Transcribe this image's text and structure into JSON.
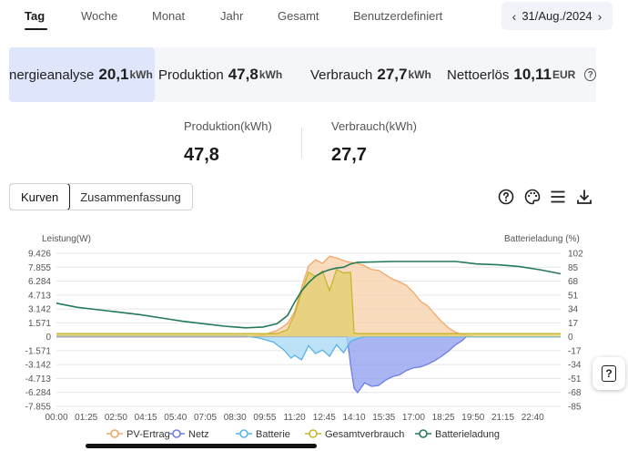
{
  "tabs": [
    {
      "label": "Tag",
      "active": true
    },
    {
      "label": "Woche"
    },
    {
      "label": "Monat"
    },
    {
      "label": "Jahr"
    },
    {
      "label": "Gesamt"
    },
    {
      "label": "Benutzerdefiniert"
    }
  ],
  "date": {
    "label": "31/Aug./2024",
    "prev_icon": "chevron-left-icon",
    "next_icon": "chevron-right-icon"
  },
  "summary_cards": [
    {
      "label": "nergieanalyse",
      "value": "20,1",
      "unit": "kWh",
      "selected": true
    },
    {
      "label": "Produktion",
      "value": "47,8",
      "unit": "kWh"
    },
    {
      "label": "Verbrauch",
      "value": "27,7",
      "unit": "kWh"
    },
    {
      "label": "Nettoerlös",
      "value": "10,11",
      "unit": "EUR"
    }
  ],
  "kpis": [
    {
      "label": "Produktion(kWh)",
      "value": "47,8"
    },
    {
      "label": "Verbrauch(kWh)",
      "value": "27,7"
    }
  ],
  "view_toggle": {
    "curves": "Kurven",
    "summary": "Zusammenfassung"
  },
  "toolbar_icons": [
    "help-icon",
    "palette-icon",
    "list-icon",
    "download-icon"
  ],
  "chart_data": {
    "type": "line",
    "ylabel": "Leistung(W)",
    "y2label": "Batterieladung (%)",
    "ylim": [
      -7855,
      9426
    ],
    "y_ticks": [
      "9.426",
      "7.855",
      "6.284",
      "4.713",
      "3.142",
      "1.571",
      "0",
      "-1.571",
      "-3.142",
      "-4.713",
      "-6.284",
      "-7.855"
    ],
    "y_tick_values": [
      9426,
      7855,
      6284,
      4713,
      3142,
      1571,
      0,
      -1571,
      -3142,
      -4713,
      -6284,
      -7855
    ],
    "y2lim": [
      -85,
      102
    ],
    "y2_ticks": [
      "102",
      "85",
      "68",
      "51",
      "34",
      "17",
      "0",
      "-17",
      "-34",
      "-51",
      "-68",
      "-85"
    ],
    "x_ticks": [
      "00:00",
      "01:25",
      "02:50",
      "04:15",
      "05:40",
      "07:05",
      "08:30",
      "09:55",
      "11:20",
      "12:45",
      "14:10",
      "15:35",
      "17:00",
      "18:25",
      "19:50",
      "21:15",
      "22:40"
    ],
    "x_tick_minutes": [
      0,
      85,
      170,
      255,
      340,
      425,
      510,
      595,
      680,
      765,
      850,
      935,
      1020,
      1105,
      1190,
      1275,
      1360
    ],
    "x_range_minutes": [
      0,
      1440
    ],
    "grid": true,
    "legend_position": "bottom",
    "series": [
      {
        "name": "PV-Ertrag",
        "color": "#f0a868",
        "fill": "#f7cfa8",
        "axis": "left",
        "x": [
          "00:00",
          "06:00",
          "08:00",
          "09:00",
          "09:50",
          "10:30",
          "11:00",
          "11:20",
          "11:40",
          "12:00",
          "12:20",
          "12:40",
          "13:00",
          "13:20",
          "13:40",
          "14:00",
          "14:20",
          "14:40",
          "15:00",
          "15:20",
          "15:40",
          "16:00",
          "16:20",
          "16:40",
          "17:00",
          "17:20",
          "17:40",
          "18:00",
          "18:20",
          "18:40",
          "19:00",
          "19:30",
          "20:00",
          "24:00"
        ],
        "values": [
          0,
          0,
          0,
          0,
          200,
          700,
          1500,
          2800,
          5500,
          8000,
          8700,
          8300,
          9100,
          8900,
          8600,
          8400,
          8300,
          8000,
          7600,
          7500,
          7000,
          6500,
          6200,
          5800,
          5000,
          4000,
          3500,
          2600,
          1700,
          1000,
          500,
          150,
          0,
          0
        ]
      },
      {
        "name": "Netz",
        "color": "#6f7ee0",
        "fill": "#8e9cf0",
        "axis": "left",
        "x": [
          "00:00",
          "13:50",
          "14:00",
          "14:10",
          "14:20",
          "14:40",
          "15:00",
          "15:20",
          "15:40",
          "16:00",
          "16:20",
          "16:40",
          "17:00",
          "17:20",
          "17:40",
          "18:00",
          "18:20",
          "18:40",
          "19:00",
          "19:20",
          "19:30",
          "24:00"
        ],
        "values": [
          0,
          0,
          -3200,
          -5800,
          -6300,
          -5200,
          -5600,
          -5500,
          -4900,
          -4500,
          -4300,
          -3800,
          -3500,
          -3400,
          -3100,
          -2700,
          -2200,
          -1600,
          -900,
          -400,
          0,
          0
        ]
      },
      {
        "name": "Batterie",
        "color": "#58b4e8",
        "fill": "#a7d8f4",
        "axis": "left",
        "x": [
          "00:00",
          "09:00",
          "09:40",
          "10:20",
          "10:50",
          "11:10",
          "11:20",
          "11:40",
          "12:00",
          "12:20",
          "12:40",
          "13:00",
          "13:20",
          "13:40",
          "14:00",
          "14:20",
          "14:40",
          "24:00"
        ],
        "values": [
          100,
          100,
          -150,
          -600,
          -1500,
          -2400,
          -2100,
          -2600,
          -1000,
          -1900,
          -1500,
          -2200,
          -900,
          -1800,
          -500,
          -200,
          0,
          0
        ]
      },
      {
        "name": "Gesamtverbrauch",
        "color": "#c9b52c",
        "fill": "#e2cf6e",
        "axis": "left",
        "x": [
          "00:00",
          "10:30",
          "11:00",
          "11:20",
          "11:40",
          "12:00",
          "12:20",
          "12:40",
          "13:00",
          "13:20",
          "13:40",
          "14:00",
          "14:10",
          "14:20",
          "24:00"
        ],
        "values": [
          350,
          350,
          800,
          2500,
          5000,
          7300,
          6800,
          7400,
          5200,
          7600,
          7200,
          7300,
          400,
          350,
          350
        ]
      },
      {
        "name": "Batterieladung",
        "color": "#237a58",
        "axis": "right",
        "x": [
          "00:00",
          "01:00",
          "02:00",
          "03:00",
          "04:00",
          "05:00",
          "06:00",
          "07:00",
          "08:00",
          "09:00",
          "09:50",
          "10:30",
          "11:00",
          "11:20",
          "11:40",
          "12:00",
          "12:20",
          "12:40",
          "13:00",
          "13:20",
          "13:40",
          "14:00",
          "14:20",
          "16:00",
          "18:00",
          "19:00",
          "20:00",
          "21:00",
          "22:00",
          "23:00",
          "24:00"
        ],
        "values": [
          41,
          36,
          33,
          30,
          27,
          23,
          19,
          16,
          13,
          11,
          12,
          16,
          26,
          42,
          56,
          66,
          74,
          79,
          82,
          84,
          85,
          89,
          91,
          92,
          92,
          92,
          89,
          88,
          86,
          82,
          77
        ]
      }
    ]
  },
  "colors": {
    "accent_selected": "#dfe5fb",
    "grid": "#e6e6e6"
  }
}
